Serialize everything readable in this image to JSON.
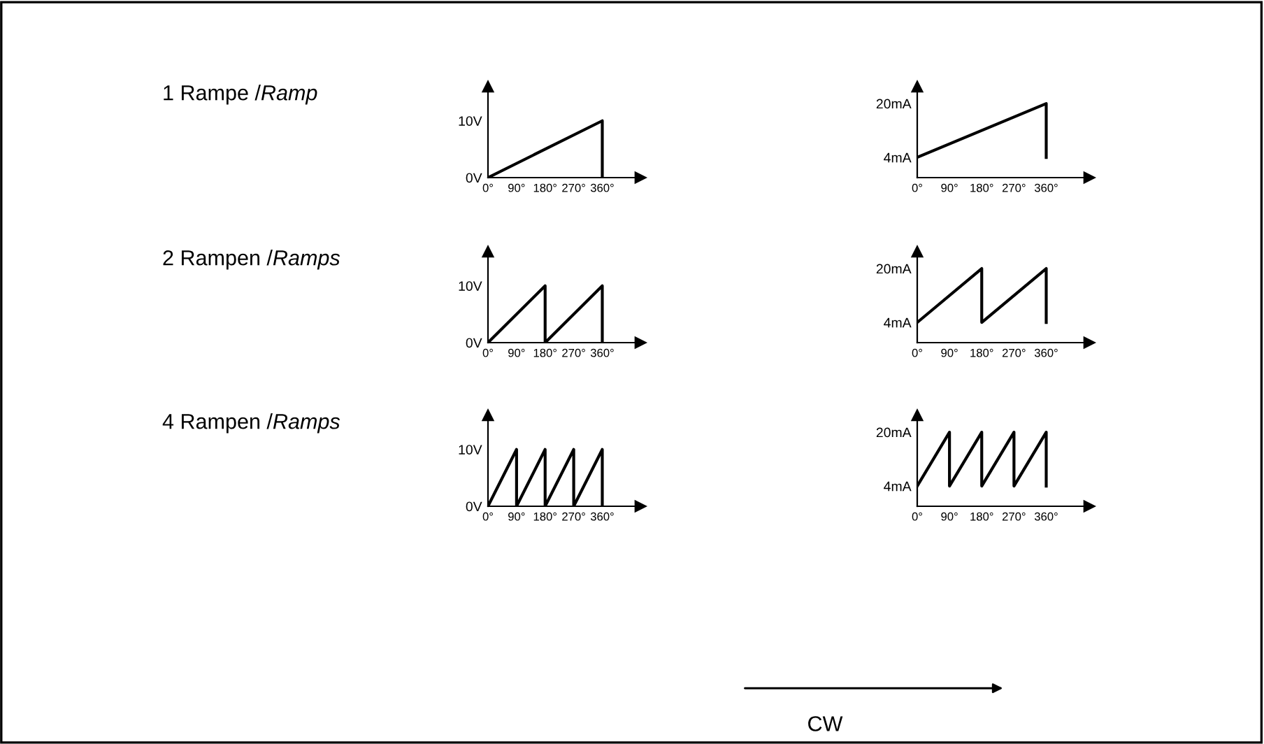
{
  "chart_data": [
    {
      "type": "other",
      "title": "1 Rampe /Ramp"
    },
    {
      "type": "line",
      "xlim": [
        0,
        480
      ],
      "ylim": [
        0,
        16
      ],
      "xticks": [
        {
          "value": 0,
          "label": "0°"
        },
        {
          "value": 90,
          "label": "90°"
        },
        {
          "value": 180,
          "label": "180°"
        },
        {
          "value": 270,
          "label": "270°"
        },
        {
          "value": 360,
          "label": "360°"
        }
      ],
      "yticks": [
        {
          "value": 0,
          "label": "0V"
        },
        {
          "value": 10,
          "label": "10V"
        }
      ],
      "grid": false,
      "series": [
        {
          "color": "#000000",
          "x": [
            0,
            360,
            360
          ],
          "values": [
            0,
            10,
            0
          ]
        }
      ]
    },
    {
      "type": "line",
      "xlim": [
        0,
        480
      ],
      "ylim": [
        -2,
        25
      ],
      "xticks": [
        {
          "value": 0,
          "label": "0°"
        },
        {
          "value": 90,
          "label": "90°"
        },
        {
          "value": 180,
          "label": "180°"
        },
        {
          "value": 270,
          "label": "270°"
        },
        {
          "value": 360,
          "label": "360°"
        }
      ],
      "yticks": [
        {
          "value": 4,
          "label": "4mA"
        },
        {
          "value": 20,
          "label": "20mA"
        }
      ],
      "grid": false,
      "series": [
        {
          "color": "#000000",
          "x": [
            0,
            360,
            360
          ],
          "values": [
            4,
            20,
            4
          ]
        }
      ]
    },
    {
      "type": "other",
      "title": "2 Rampen /Ramps"
    },
    {
      "type": "line",
      "xlim": [
        0,
        480
      ],
      "ylim": [
        0,
        16
      ],
      "xticks": [
        {
          "value": 0,
          "label": "0°"
        },
        {
          "value": 90,
          "label": "90°"
        },
        {
          "value": 180,
          "label": "180°"
        },
        {
          "value": 270,
          "label": "270°"
        },
        {
          "value": 360,
          "label": "360°"
        }
      ],
      "yticks": [
        {
          "value": 0,
          "label": "0V"
        },
        {
          "value": 10,
          "label": "10V"
        }
      ],
      "grid": false,
      "series": [
        {
          "color": "#000000",
          "x": [
            0,
            180,
            180,
            360,
            360
          ],
          "values": [
            0,
            10,
            0,
            10,
            0
          ]
        }
      ]
    },
    {
      "type": "line",
      "xlim": [
        0,
        480
      ],
      "ylim": [
        -2,
        25
      ],
      "xticks": [
        {
          "value": 0,
          "label": "0°"
        },
        {
          "value": 90,
          "label": "90°"
        },
        {
          "value": 180,
          "label": "180°"
        },
        {
          "value": 270,
          "label": "270°"
        },
        {
          "value": 360,
          "label": "360°"
        }
      ],
      "yticks": [
        {
          "value": 4,
          "label": "4mA"
        },
        {
          "value": 20,
          "label": "20mA"
        }
      ],
      "grid": false,
      "series": [
        {
          "color": "#000000",
          "x": [
            0,
            180,
            180,
            360,
            360
          ],
          "values": [
            4,
            20,
            4,
            20,
            4
          ]
        }
      ]
    },
    {
      "type": "other",
      "title": "4 Rampen /Ramps"
    },
    {
      "type": "line",
      "xlim": [
        0,
        480
      ],
      "ylim": [
        0,
        16
      ],
      "xticks": [
        {
          "value": 0,
          "label": "0°"
        },
        {
          "value": 90,
          "label": "90°"
        },
        {
          "value": 180,
          "label": "180°"
        },
        {
          "value": 270,
          "label": "270°"
        },
        {
          "value": 360,
          "label": "360°"
        }
      ],
      "yticks": [
        {
          "value": 0,
          "label": "0V"
        },
        {
          "value": 10,
          "label": "10V"
        }
      ],
      "grid": false,
      "series": [
        {
          "color": "#000000",
          "x": [
            0,
            90,
            90,
            180,
            180,
            270,
            270,
            360,
            360
          ],
          "values": [
            0,
            10,
            0,
            10,
            0,
            10,
            0,
            10,
            0
          ]
        }
      ]
    },
    {
      "type": "line",
      "xlim": [
        0,
        480
      ],
      "ylim": [
        -2,
        25
      ],
      "xticks": [
        {
          "value": 0,
          "label": "0°"
        },
        {
          "value": 90,
          "label": "90°"
        },
        {
          "value": 180,
          "label": "180°"
        },
        {
          "value": 270,
          "label": "270°"
        },
        {
          "value": 360,
          "label": "360°"
        }
      ],
      "yticks": [
        {
          "value": 4,
          "label": "4mA"
        },
        {
          "value": 20,
          "label": "20mA"
        }
      ],
      "grid": false,
      "series": [
        {
          "color": "#000000",
          "x": [
            0,
            90,
            90,
            180,
            180,
            270,
            270,
            360,
            360
          ],
          "values": [
            4,
            20,
            4,
            20,
            4,
            20,
            4,
            20,
            4
          ]
        }
      ]
    },
    {
      "type": "other",
      "annotations": [
        "CW"
      ]
    }
  ]
}
